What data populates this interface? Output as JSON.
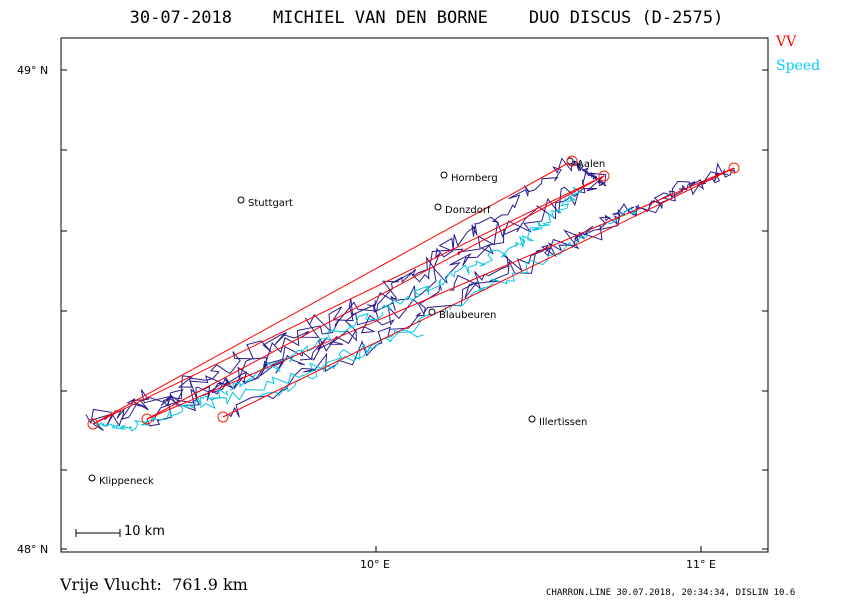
{
  "header": {
    "date": "30-07-2018",
    "pilot": "MICHIEL VAN DEN BORNE",
    "aircraft": "DUO DISCUS (D-2575)"
  },
  "legend": {
    "items": [
      {
        "label": "VV",
        "color": "#ff0000"
      },
      {
        "label": "Speed",
        "color": "#00ccff"
      }
    ]
  },
  "axes": {
    "lat_labels": [
      {
        "label": "49° N",
        "lat": 49.0
      },
      {
        "label": "48° N",
        "lat": 48.0
      }
    ],
    "lon_labels": [
      {
        "label": "10° E",
        "lon": 10.0
      },
      {
        "label": "11° E",
        "lon": 11.0
      }
    ]
  },
  "scale_bar": {
    "label": "10 km"
  },
  "places": [
    {
      "name": "Aalen",
      "lon": 10.09,
      "lat": 48.84
    },
    {
      "name": "Hornberg",
      "lon": 10.21,
      "lat": 48.78
    },
    {
      "name": "Stuttgart",
      "lon": 9.18,
      "lat": 48.78
    },
    {
      "name": "Donzdorf",
      "lon": 9.81,
      "lat": 48.7
    },
    {
      "name": "Blaubeuren",
      "lon": 9.79,
      "lat": 48.41
    },
    {
      "name": "Illertissen",
      "lon": 10.1,
      "lat": 48.22
    },
    {
      "name": "Klippeneck",
      "lon": 8.75,
      "lat": 48.11
    }
  ],
  "turnpoints": [
    {
      "lon": 10.6,
      "lat": 48.82
    },
    {
      "lon": 8.63,
      "lat": 48.26
    },
    {
      "lon": 10.7,
      "lat": 48.79
    },
    {
      "lon": 8.8,
      "lat": 48.27
    },
    {
      "lon": 11.1,
      "lat": 48.8
    },
    {
      "lon": 9.05,
      "lat": 48.28
    }
  ],
  "footer": {
    "distance": "Vrije Vlucht:  761.9 km",
    "software": "CHARRON.LINE 30.07.2018, 20:34:34, DISLIN 10.6"
  }
}
